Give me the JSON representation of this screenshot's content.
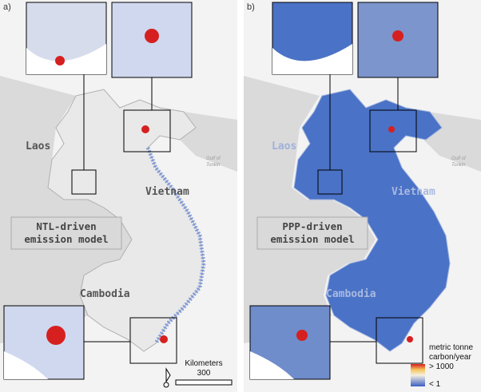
{
  "panels": [
    {
      "label": "a)",
      "countries": [
        "Laos",
        "Vietnam",
        "Cambodia"
      ],
      "sea_label": [
        "Gulf of",
        "Tonkin"
      ],
      "model_label": [
        "NTL-driven",
        "emission model"
      ]
    },
    {
      "label": "b)",
      "countries": [
        "Laos",
        "Vietnam",
        "Cambodia"
      ],
      "sea_label": [
        "Gulf of",
        "Tonkin"
      ],
      "model_label": [
        "PPP-driven",
        "emission model"
      ]
    }
  ],
  "scale_bar": {
    "title": "Kilometers",
    "value": "300"
  },
  "legend": {
    "title": [
      "metric tonne",
      "carbon/year"
    ],
    "max": "> 1000",
    "min": "< 1"
  }
}
